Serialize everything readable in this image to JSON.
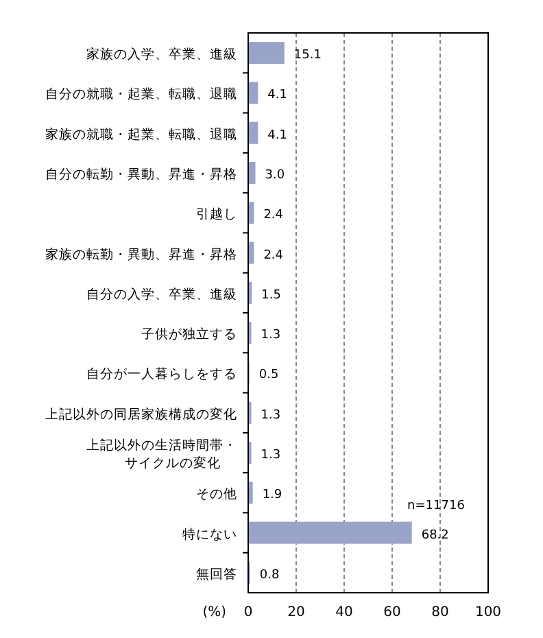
{
  "chart_data": {
    "type": "bar",
    "orientation": "horizontal",
    "xlabel": "(%)",
    "categories": [
      "家族の入学、卒業、進級",
      "自分の就職・起業、転職、退職",
      "家族の就職・起業、転職、退職",
      "自分の転勤・異動、昇進・昇格",
      "引越し",
      "家族の転勤・異動、昇進・昇格",
      "自分の入学、卒業、進級",
      "子供が独立する",
      "自分が一人暮らしをする",
      "上記以外の同居家族構成の変化",
      "上記以外の生活時間帯・サイクルの変化",
      "その他",
      "特にない",
      "無回答"
    ],
    "values": [
      15.1,
      4.1,
      4.1,
      3.0,
      2.4,
      2.4,
      1.5,
      1.3,
      0.5,
      1.3,
      1.3,
      1.9,
      68.2,
      0.8
    ],
    "value_labels": [
      "15.1",
      "4.1",
      "4.1",
      "3.0",
      "2.4",
      "2.4",
      "1.5",
      "1.3",
      "0.5",
      "1.3",
      "1.3",
      "1.9",
      "68.2",
      "0.8"
    ],
    "color": "#9aa3c8",
    "xlim": [
      0,
      100
    ],
    "xticks": [
      0,
      20,
      40,
      60,
      80,
      100
    ],
    "grid": "x",
    "annotations": [
      "n=11716"
    ]
  }
}
